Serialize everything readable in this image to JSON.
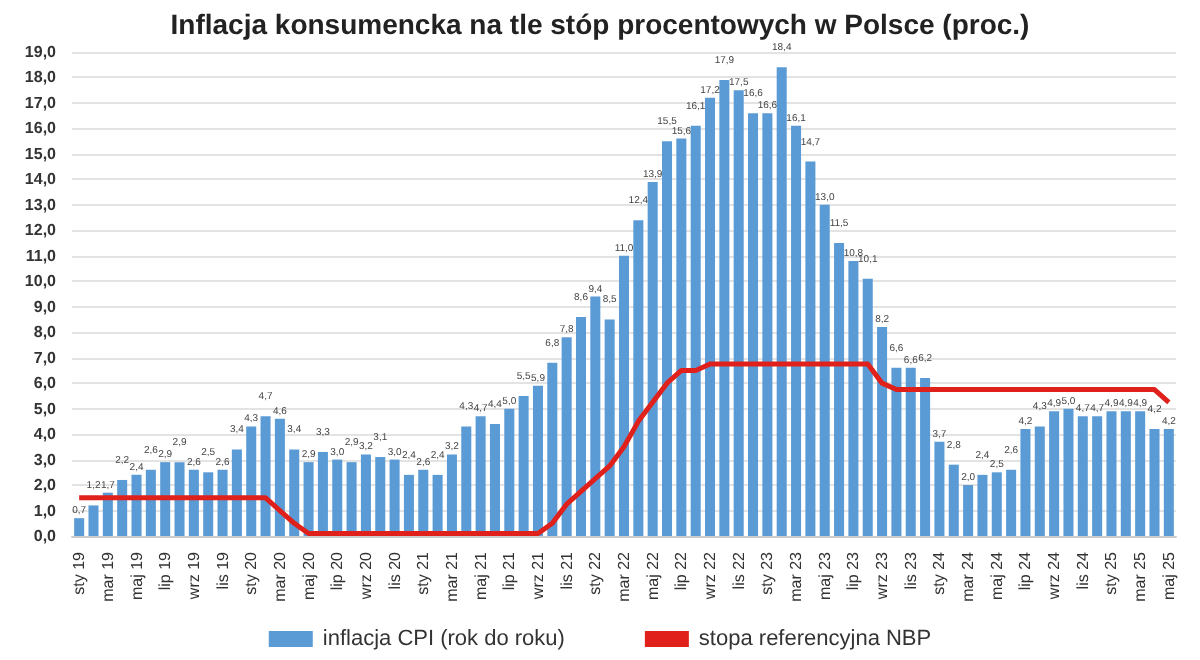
{
  "chart_data": {
    "type": "bar",
    "title": "Inflacja konsumencka na tle stóp procentowych w Polsce (proc.)",
    "categories": [
      "sty 19",
      null,
      "mar 19",
      null,
      "maj 19",
      null,
      "lip 19",
      null,
      "wrz 19",
      null,
      "lis 19",
      null,
      "sty 20",
      null,
      "mar 20",
      null,
      "maj 20",
      null,
      "lip 20",
      null,
      "wrz 20",
      null,
      "lis 20",
      null,
      "sty 21",
      null,
      "mar 21",
      null,
      "maj 21",
      null,
      "lip 21",
      null,
      "wrz 21",
      null,
      "lis 21",
      null,
      "sty 22",
      null,
      "mar 22",
      null,
      "maj 22",
      null,
      "lip 22",
      null,
      "wrz 22",
      null,
      "lis 22",
      null,
      "sty 23",
      null,
      "mar 23",
      null,
      "maj 23",
      null,
      "lip 23",
      null,
      "wrz 23",
      null,
      "lis 23",
      null,
      "sty 24",
      null,
      "mar 24",
      null,
      "maj 24",
      null,
      "lip 24",
      null,
      "wrz 24",
      null,
      "lis 24",
      null,
      "sty 25",
      null,
      "mar 25",
      null,
      "maj 25"
    ],
    "series": [
      {
        "name": "inflacja CPI (rok do roku)",
        "color": "#5b9bd5",
        "value_labels": [
          "0,7",
          "1,2",
          "1,7",
          "2,2",
          "2,4",
          "2,6",
          "2,9",
          "2,9",
          "2,6",
          "2,5",
          "2,6",
          "3,4",
          "4,3",
          "4,7",
          "4,6",
          "3,4",
          "2,9",
          "3,3",
          "3,0",
          "2,9",
          "3,2",
          "3,1",
          "3,0",
          "2,4",
          "2,6",
          "2,4",
          "3,2",
          "4,3",
          "4,7",
          "4,4",
          "5,0",
          "5,5",
          "5,9",
          "6,8",
          "7,8",
          "8,6",
          "9,4",
          "8,5",
          "11,0",
          "12,4",
          "13,9",
          "15,5",
          "15,6",
          "16,1",
          "17,2",
          "17,9",
          "17,5",
          "16,6",
          "16,6",
          "18,4",
          "16,1",
          "14,7",
          "13,0",
          "11,5",
          "10,8",
          "10,1",
          "8,2",
          "6,6",
          "6,6",
          "6,2",
          "3,7",
          "2,8",
          "2,0",
          "2,4",
          "2,5",
          "2,6",
          "4,2",
          "4,3",
          "4,9",
          "5,0",
          "4,7",
          "4,7",
          "4,9",
          "4,9",
          "4,9",
          "4,2",
          "4,2"
        ],
        "values": [
          0.7,
          1.2,
          1.7,
          2.2,
          2.4,
          2.6,
          2.9,
          2.9,
          2.6,
          2.5,
          2.6,
          3.4,
          4.3,
          4.7,
          4.6,
          3.4,
          2.9,
          3.3,
          3.0,
          2.9,
          3.2,
          3.1,
          3.0,
          2.4,
          2.6,
          2.4,
          3.2,
          4.3,
          4.7,
          4.4,
          5.0,
          5.5,
          5.9,
          6.8,
          7.8,
          8.6,
          9.4,
          8.5,
          11.0,
          12.4,
          13.9,
          15.5,
          15.6,
          16.1,
          17.2,
          17.9,
          17.5,
          16.6,
          16.6,
          18.4,
          16.1,
          14.7,
          13.0,
          11.5,
          10.8,
          10.1,
          8.2,
          6.6,
          6.6,
          6.2,
          3.7,
          2.8,
          2.0,
          2.4,
          2.5,
          2.6,
          4.2,
          4.3,
          4.9,
          5.0,
          4.7,
          4.7,
          4.9,
          4.9,
          4.9,
          4.2,
          4.2
        ]
      },
      {
        "name": "stopa referencyjna NBP",
        "type": "line",
        "color": "#e0201b",
        "marker": "none",
        "line_style": "solid",
        "values": [
          1.5,
          1.5,
          1.5,
          1.5,
          1.5,
          1.5,
          1.5,
          1.5,
          1.5,
          1.5,
          1.5,
          1.5,
          1.5,
          1.5,
          1.0,
          0.5,
          0.1,
          0.1,
          0.1,
          0.1,
          0.1,
          0.1,
          0.1,
          0.1,
          0.1,
          0.1,
          0.1,
          0.1,
          0.1,
          0.1,
          0.1,
          0.1,
          0.1,
          0.5,
          1.25,
          1.75,
          2.25,
          2.75,
          3.5,
          4.5,
          5.25,
          6.0,
          6.5,
          6.5,
          6.75,
          6.75,
          6.75,
          6.75,
          6.75,
          6.75,
          6.75,
          6.75,
          6.75,
          6.75,
          6.75,
          6.75,
          6.0,
          5.75,
          5.75,
          5.75,
          5.75,
          5.75,
          5.75,
          5.75,
          5.75,
          5.75,
          5.75,
          5.75,
          5.75,
          5.75,
          5.75,
          5.75,
          5.75,
          5.75,
          5.75,
          5.75,
          5.25
        ]
      }
    ],
    "ylim": [
      0,
      19
    ],
    "yticks": [
      {
        "value": 0,
        "label": "0,0"
      },
      {
        "value": 1,
        "label": "1,0"
      },
      {
        "value": 2,
        "label": "2,0"
      },
      {
        "value": 3,
        "label": "3,0"
      },
      {
        "value": 4,
        "label": "4,0"
      },
      {
        "value": 5,
        "label": "5,0"
      },
      {
        "value": 6,
        "label": "6,0"
      },
      {
        "value": 7,
        "label": "7,0"
      },
      {
        "value": 8,
        "label": "8,0"
      },
      {
        "value": 9,
        "label": "9,0"
      },
      {
        "value": 10,
        "label": "10,0"
      },
      {
        "value": 11,
        "label": "11,0"
      },
      {
        "value": 12,
        "label": "12,0"
      },
      {
        "value": 13,
        "label": "13,0"
      },
      {
        "value": 14,
        "label": "14,0"
      },
      {
        "value": 15,
        "label": "15,0"
      },
      {
        "value": 16,
        "label": "16,0"
      },
      {
        "value": 17,
        "label": "17,0"
      },
      {
        "value": 18,
        "label": "18,0"
      },
      {
        "value": 19,
        "label": "19,0"
      }
    ],
    "grid": "y",
    "legend": "bottom"
  }
}
